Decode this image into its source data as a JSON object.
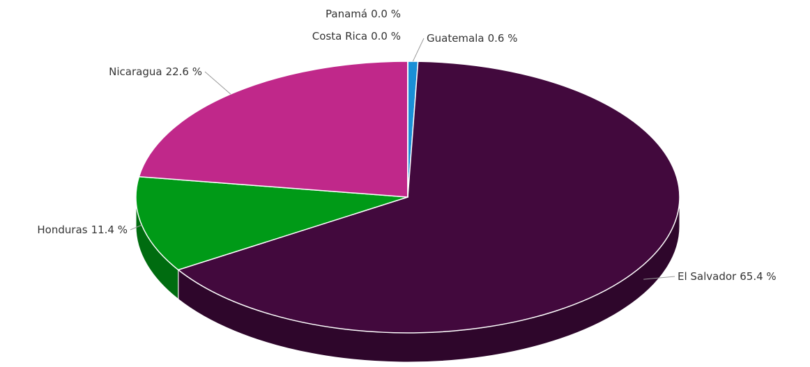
{
  "chart_data": {
    "type": "pie3d",
    "categories": [
      "Guatemala",
      "El Salvador",
      "Honduras",
      "Nicaragua",
      "Costa Rica",
      "Panamá"
    ],
    "values": [
      0.6,
      65.4,
      11.4,
      22.6,
      0.0,
      0.0
    ],
    "value_labels": [
      "0.6 %",
      "65.4 %",
      "11.4 %",
      "22.6 %",
      "0.0 %",
      "0.0 %"
    ],
    "colors": [
      "#1a8fd6",
      "#42093d",
      "#009a17",
      "#c0288a",
      "#e07b00",
      "#7a7a7a"
    ]
  }
}
